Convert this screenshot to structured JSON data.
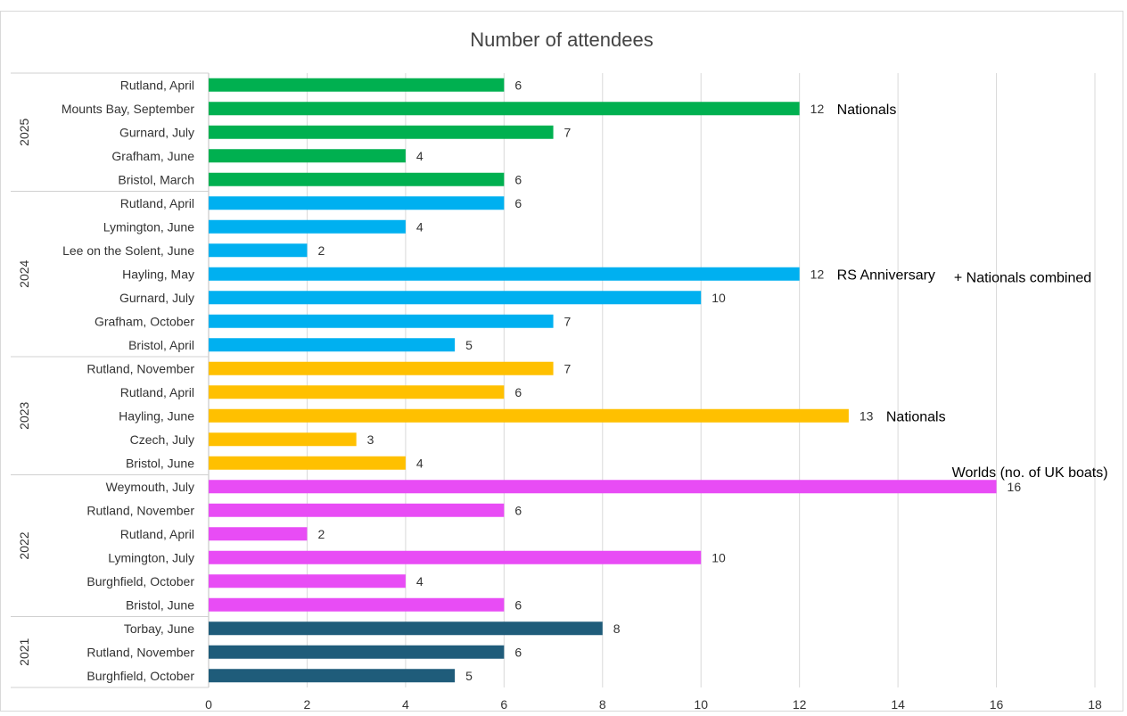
{
  "chart_data": {
    "type": "bar",
    "orientation": "horizontal",
    "title": "Number of attendees",
    "xlim": [
      0,
      18
    ],
    "x_ticks": [
      "0",
      "2",
      "4",
      "6",
      "8",
      "10",
      "12",
      "14",
      "16",
      "18"
    ],
    "grid": true,
    "groups": [
      {
        "name": "2025",
        "color": "#00b050",
        "items": [
          {
            "label": "Rutland, April",
            "value": 6
          },
          {
            "label": "Mounts Bay, September",
            "value": 12,
            "annotation": "Nationals"
          },
          {
            "label": "Gurnard, July",
            "value": 7
          },
          {
            "label": "Grafham, June",
            "value": 4
          },
          {
            "label": "Bristol, March",
            "value": 6
          }
        ]
      },
      {
        "name": "2024",
        "color": "#00b0f0",
        "items": [
          {
            "label": "Rutland, April",
            "value": 6
          },
          {
            "label": "Lymington, June",
            "value": 4
          },
          {
            "label": "Lee on the Solent, June",
            "value": 2
          },
          {
            "label": "Hayling, May",
            "value": 12,
            "annotation": "RS Anniversary",
            "annotation2": "+ Nationals combined"
          },
          {
            "label": "Gurnard, July",
            "value": 10
          },
          {
            "label": "Grafham, October",
            "value": 7
          },
          {
            "label": "Bristol, April",
            "value": 5
          }
        ]
      },
      {
        "name": "2023",
        "color": "#ffc000",
        "items": [
          {
            "label": "Rutland, November",
            "value": 7
          },
          {
            "label": "Rutland, April",
            "value": 6
          },
          {
            "label": "Hayling, June",
            "value": 13,
            "annotation": "Nationals"
          },
          {
            "label": "Czech, July",
            "value": 3
          },
          {
            "label": "Bristol, June",
            "value": 4
          }
        ]
      },
      {
        "name": "2022",
        "color": "#e84cf5",
        "items": [
          {
            "label": "Weymouth, July",
            "value": 16,
            "annotation_above": "Worlds (no. of UK boats)"
          },
          {
            "label": "Rutland, November",
            "value": 6
          },
          {
            "label": "Rutland, April",
            "value": 2
          },
          {
            "label": "Lymington, July",
            "value": 10
          },
          {
            "label": "Burghfield, October",
            "value": 4
          },
          {
            "label": "Bristol, June",
            "value": 6
          }
        ]
      },
      {
        "name": "2021",
        "color": "#1f5c7a",
        "items": [
          {
            "label": "Torbay, June",
            "value": 8
          },
          {
            "label": "Rutland, November",
            "value": 6
          },
          {
            "label": "Burghfield, October",
            "value": 5
          }
        ]
      }
    ]
  }
}
